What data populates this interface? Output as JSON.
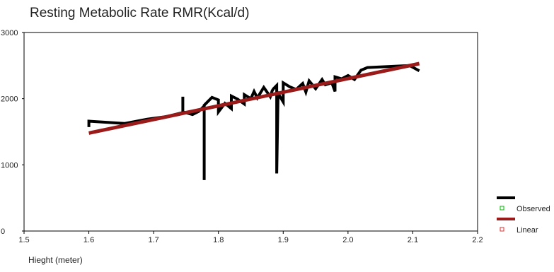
{
  "chart_data": {
    "type": "line",
    "title": "Resting Metabolic Rate RMR(Kcal/d)",
    "xlabel": "Hieght (meter)",
    "ylabel": "",
    "xlim": [
      1.5,
      2.2
    ],
    "ylim": [
      0,
      3000
    ],
    "x_ticks": [
      "1.5",
      "1.6",
      "1.7",
      "1.8",
      "1.9",
      "2.0",
      "2.1",
      "2.2"
    ],
    "y_ticks": [
      "0",
      "1000",
      "2000",
      "3000"
    ],
    "grid": false,
    "legend_position": "right",
    "series": [
      {
        "name": "Observed",
        "color": "#000000",
        "marker_color": "#00c000",
        "points": [
          [
            1.6,
            1570
          ],
          [
            1.6,
            1660
          ],
          [
            1.655,
            1625
          ],
          [
            1.69,
            1690
          ],
          [
            1.72,
            1730
          ],
          [
            1.745,
            1790
          ],
          [
            1.745,
            2030
          ],
          [
            1.745,
            1800
          ],
          [
            1.76,
            1760
          ],
          [
            1.77,
            1810
          ],
          [
            1.778,
            1890
          ],
          [
            1.778,
            770
          ],
          [
            1.778,
            1900
          ],
          [
            1.79,
            2020
          ],
          [
            1.8,
            1980
          ],
          [
            1.8,
            1800
          ],
          [
            1.81,
            1930
          ],
          [
            1.82,
            1850
          ],
          [
            1.82,
            2040
          ],
          [
            1.83,
            1990
          ],
          [
            1.84,
            1920
          ],
          [
            1.84,
            2060
          ],
          [
            1.85,
            2000
          ],
          [
            1.855,
            2110
          ],
          [
            1.86,
            2010
          ],
          [
            1.865,
            2090
          ],
          [
            1.87,
            2170
          ],
          [
            1.88,
            2030
          ],
          [
            1.883,
            2120
          ],
          [
            1.885,
            2150
          ],
          [
            1.89,
            2200
          ],
          [
            1.89,
            870
          ],
          [
            1.892,
            2080
          ],
          [
            1.9,
            1950
          ],
          [
            1.9,
            2240
          ],
          [
            1.91,
            2180
          ],
          [
            1.92,
            2140
          ],
          [
            1.93,
            2230
          ],
          [
            1.935,
            2100
          ],
          [
            1.94,
            2270
          ],
          [
            1.95,
            2150
          ],
          [
            1.96,
            2290
          ],
          [
            1.965,
            2210
          ],
          [
            1.975,
            2240
          ],
          [
            1.98,
            2110
          ],
          [
            1.98,
            2330
          ],
          [
            1.99,
            2300
          ],
          [
            2.0,
            2350
          ],
          [
            2.01,
            2290
          ],
          [
            2.02,
            2430
          ],
          [
            2.03,
            2470
          ],
          [
            2.095,
            2500
          ],
          [
            2.11,
            2420
          ]
        ]
      },
      {
        "name": "Linear",
        "color": "#9b1b1b",
        "marker_color": "#e03030",
        "points": [
          [
            1.6,
            1480
          ],
          [
            2.11,
            2530
          ]
        ]
      }
    ]
  }
}
